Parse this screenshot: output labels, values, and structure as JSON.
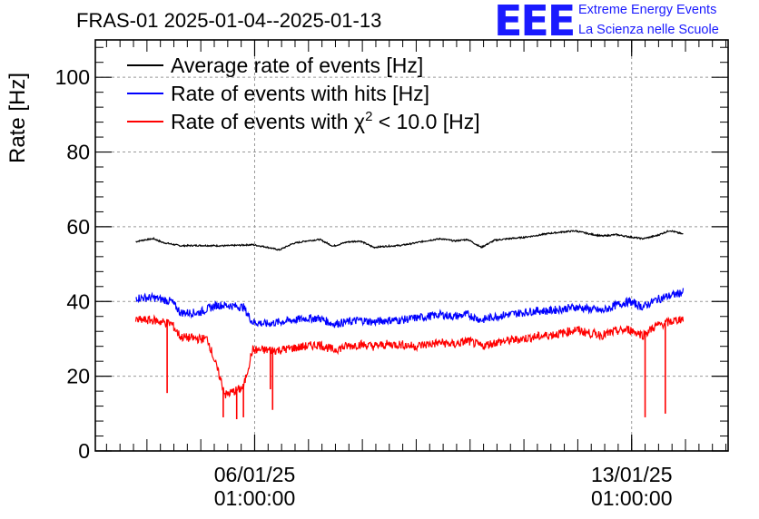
{
  "header": {
    "title": "FRAS-01 2025-01-04--2025-01-13",
    "logo_text": "EEE",
    "logo_line1": "Extreme Energy Events",
    "logo_line2": "La Scienza nelle Scuole"
  },
  "colors": {
    "average": "#000000",
    "hits": "#0000ff",
    "chi2": "#ff0000",
    "logo": "#1a1aff",
    "grid": "#999999"
  },
  "chart_data": {
    "type": "line",
    "title": "FRAS-01 2025-01-04--2025-01-13",
    "ylabel": "Rate [Hz]",
    "xlabel": "",
    "ylim": [
      0,
      110
    ],
    "grid": true,
    "legend_position": "top-left",
    "x_ticks": [
      {
        "date": "2025-01-06T01:00:00",
        "line1": "06/01/25",
        "line2": "01:00:00"
      },
      {
        "date": "2025-01-13T01:00:00",
        "line1": "13/01/25",
        "line2": "01:00:00"
      }
    ],
    "y_ticks": [
      0,
      20,
      40,
      60,
      80,
      100
    ],
    "x_range": [
      "2025-01-03T02:00:00",
      "2025-01-14T20:00:00"
    ],
    "series": [
      {
        "name": "Average rate of events [Hz]",
        "legend_prefix": "Average rate of events [Hz]",
        "legend_sup": "",
        "legend_suffix": "",
        "color": "#000000",
        "noise": 0.4,
        "x": [
          "2025-01-03T20:00",
          "2025-01-04T00:00",
          "2025-01-04T04:00",
          "2025-01-04T08:00",
          "2025-01-04T16:00",
          "2025-01-05T00:00",
          "2025-01-05T12:00",
          "2025-01-06T00:00",
          "2025-01-06T06:00",
          "2025-01-06T12:00",
          "2025-01-06T18:00",
          "2025-01-07T00:00",
          "2025-01-07T06:00",
          "2025-01-07T12:00",
          "2025-01-07T18:00",
          "2025-01-08T00:00",
          "2025-01-08T06:00",
          "2025-01-08T12:00",
          "2025-01-08T18:00",
          "2025-01-09T00:00",
          "2025-01-09T06:00",
          "2025-01-09T12:00",
          "2025-01-09T18:00",
          "2025-01-10T00:00",
          "2025-01-10T06:00",
          "2025-01-10T12:00",
          "2025-01-10T18:00",
          "2025-01-11T00:00",
          "2025-01-11T06:00",
          "2025-01-11T12:00",
          "2025-01-11T18:00",
          "2025-01-12T00:00",
          "2025-01-12T06:00",
          "2025-01-12T12:00",
          "2025-01-12T18:00",
          "2025-01-13T00:00",
          "2025-01-13T06:00",
          "2025-01-13T12:00",
          "2025-01-13T18:00",
          "2025-01-14T00:00"
        ],
        "values": [
          56.0,
          56.5,
          56.8,
          55.8,
          54.9,
          55.0,
          54.9,
          55.2,
          54.6,
          53.8,
          55.5,
          56.2,
          56.6,
          54.8,
          55.9,
          56.2,
          54.5,
          54.8,
          55.0,
          55.6,
          56.3,
          56.8,
          56.2,
          56.6,
          54.5,
          56.4,
          56.8,
          57.1,
          57.6,
          58.2,
          58.6,
          58.9,
          58.1,
          57.5,
          57.9,
          57.3,
          56.8,
          57.6,
          59.0,
          58.0
        ]
      },
      {
        "name": "Rate of events with hits [Hz]",
        "legend_prefix": "Rate of events with hits [Hz]",
        "legend_sup": "",
        "legend_suffix": "",
        "color": "#0000ff",
        "noise": 2.2,
        "x": [
          "2025-01-03T20:00",
          "2025-01-04T04:00",
          "2025-01-04T12:00",
          "2025-01-04T16:00",
          "2025-01-05T00:00",
          "2025-01-05T08:00",
          "2025-01-05T12:00",
          "2025-01-05T20:00",
          "2025-01-06T00:00",
          "2025-01-06T06:00",
          "2025-01-06T12:00",
          "2025-01-06T18:00",
          "2025-01-07T00:00",
          "2025-01-07T06:00",
          "2025-01-07T12:00",
          "2025-01-07T18:00",
          "2025-01-08T00:00",
          "2025-01-08T06:00",
          "2025-01-08T12:00",
          "2025-01-08T18:00",
          "2025-01-09T00:00",
          "2025-01-09T06:00",
          "2025-01-09T12:00",
          "2025-01-09T18:00",
          "2025-01-10T00:00",
          "2025-01-10T06:00",
          "2025-01-10T12:00",
          "2025-01-10T18:00",
          "2025-01-11T00:00",
          "2025-01-11T06:00",
          "2025-01-11T12:00",
          "2025-01-11T18:00",
          "2025-01-12T00:00",
          "2025-01-12T06:00",
          "2025-01-12T12:00",
          "2025-01-12T18:00",
          "2025-01-13T00:00",
          "2025-01-13T06:00",
          "2025-01-13T12:00",
          "2025-01-13T18:00",
          "2025-01-14T00:00"
        ],
        "values": [
          41.0,
          41.0,
          40.0,
          37.0,
          37.0,
          39.0,
          39.0,
          38.5,
          34.5,
          34.0,
          34.5,
          35.0,
          35.5,
          35.5,
          34.0,
          34.5,
          35.0,
          34.5,
          35.0,
          35.0,
          35.5,
          36.0,
          36.5,
          36.0,
          36.5,
          35.0,
          36.0,
          36.5,
          37.0,
          37.5,
          37.5,
          38.0,
          38.5,
          38.0,
          37.5,
          39.0,
          40.0,
          38.5,
          40.5,
          41.5,
          42.5
        ]
      },
      {
        "name": "Rate of events with χ2 < 10.0 [Hz]",
        "legend_prefix": "Rate of events with χ",
        "legend_sup": "2",
        "legend_suffix": " < 10.0 [Hz]",
        "color": "#ff0000",
        "noise": 2.4,
        "x": [
          "2025-01-03T20:00",
          "2025-01-04T04:00",
          "2025-01-04T12:00",
          "2025-01-04T16:00",
          "2025-01-05T00:00",
          "2025-01-05T04:00",
          "2025-01-05T12:00",
          "2025-01-05T20:00",
          "2025-01-06T00:00",
          "2025-01-06T06:00",
          "2025-01-06T12:00",
          "2025-01-06T18:00",
          "2025-01-07T00:00",
          "2025-01-07T06:00",
          "2025-01-07T12:00",
          "2025-01-07T18:00",
          "2025-01-08T00:00",
          "2025-01-08T06:00",
          "2025-01-08T12:00",
          "2025-01-08T18:00",
          "2025-01-09T00:00",
          "2025-01-09T06:00",
          "2025-01-09T12:00",
          "2025-01-09T18:00",
          "2025-01-10T00:00",
          "2025-01-10T06:00",
          "2025-01-10T12:00",
          "2025-01-10T18:00",
          "2025-01-11T00:00",
          "2025-01-11T06:00",
          "2025-01-11T12:00",
          "2025-01-11T18:00",
          "2025-01-12T00:00",
          "2025-01-12T06:00",
          "2025-01-12T12:00",
          "2025-01-12T18:00",
          "2025-01-13T00:00",
          "2025-01-13T06:00",
          "2025-01-13T12:00",
          "2025-01-13T18:00",
          "2025-01-14T00:00"
        ],
        "values": [
          35.0,
          35.0,
          34.0,
          30.5,
          30.0,
          30.0,
          15.0,
          17.0,
          27.0,
          27.0,
          27.0,
          27.5,
          28.0,
          28.5,
          27.0,
          28.0,
          28.5,
          28.0,
          28.5,
          28.5,
          28.0,
          28.5,
          29.0,
          28.5,
          29.5,
          28.0,
          29.0,
          29.5,
          30.0,
          30.5,
          31.0,
          31.5,
          32.5,
          31.5,
          31.0,
          32.0,
          32.5,
          31.0,
          33.5,
          34.5,
          35.5
        ],
        "spikes": [
          {
            "x": "2025-01-04T10:00",
            "y": 15.5
          },
          {
            "x": "2025-01-05T11:00",
            "y": 9.0
          },
          {
            "x": "2025-01-05T17:00",
            "y": 8.5
          },
          {
            "x": "2025-01-05T20:00",
            "y": 9.0
          },
          {
            "x": "2025-01-06T08:00",
            "y": 16.5
          },
          {
            "x": "2025-01-06T09:00",
            "y": 11.0
          },
          {
            "x": "2025-01-13T07:00",
            "y": 9.0
          },
          {
            "x": "2025-01-13T16:00",
            "y": 10.0
          }
        ]
      }
    ]
  }
}
